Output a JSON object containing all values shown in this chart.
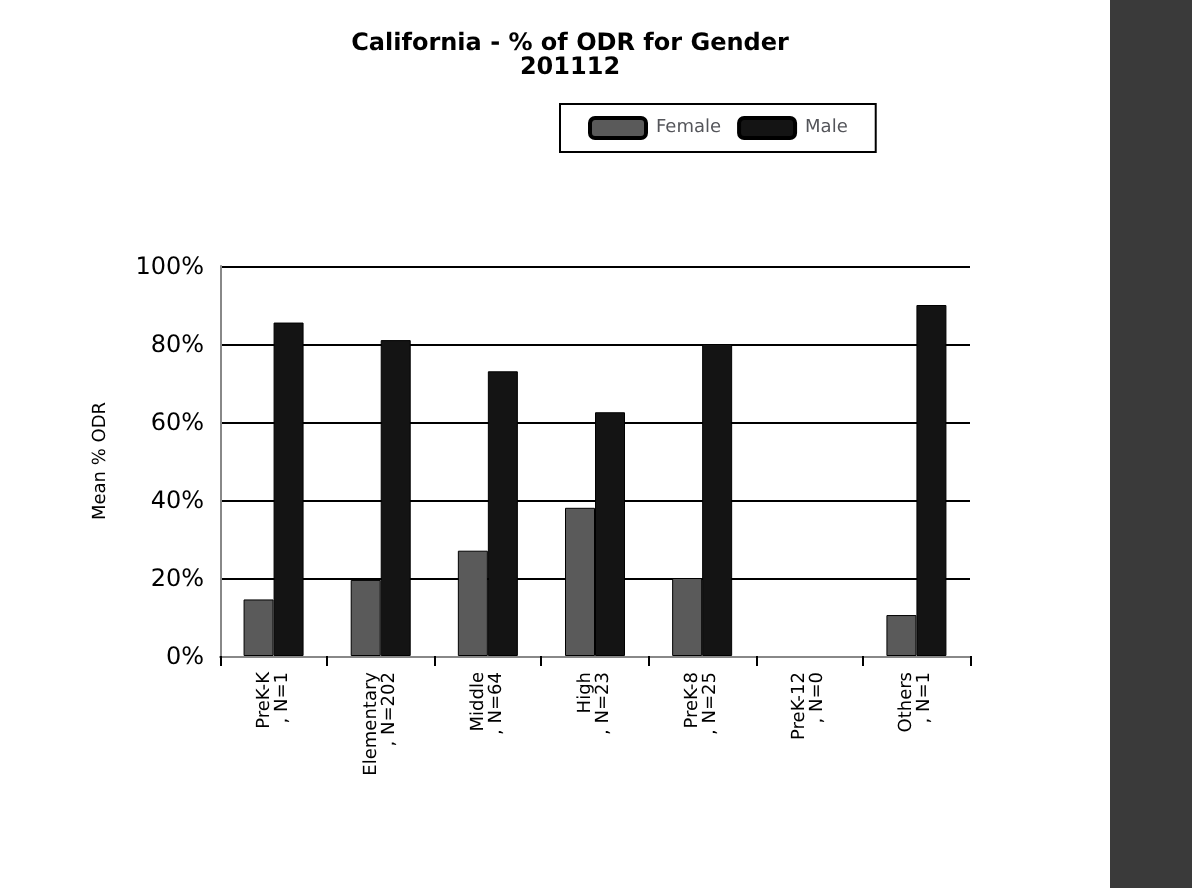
{
  "chart_data": {
    "type": "bar",
    "title": "California - % of ODR for Gender\n201112",
    "ylabel": "Mean % ODR",
    "categories": [
      "PreK-K , N=1",
      "Elementary , N=202",
      "Middle , N=64",
      "High , N=23",
      "PreK-8 , N=25",
      "PreK-12 , N=0",
      "Others , N=1"
    ],
    "series": [
      {
        "name": "Female",
        "color": "#5a5a5a",
        "values": [
          14.5,
          19.5,
          27,
          38,
          20,
          null,
          10.5
        ]
      },
      {
        "name": "Male",
        "color": "#141414",
        "values": [
          85.5,
          81,
          73,
          62.5,
          80,
          null,
          90
        ]
      }
    ],
    "ylim": [
      0,
      100
    ],
    "yticks": [
      {
        "value": 0,
        "label": "0%"
      },
      {
        "value": 20,
        "label": "20%"
      },
      {
        "value": 40,
        "label": "40%"
      },
      {
        "value": 60,
        "label": "60%"
      },
      {
        "value": 80,
        "label": "80%"
      },
      {
        "value": 100,
        "label": "100%"
      }
    ],
    "grid": "y",
    "legend": "top"
  }
}
